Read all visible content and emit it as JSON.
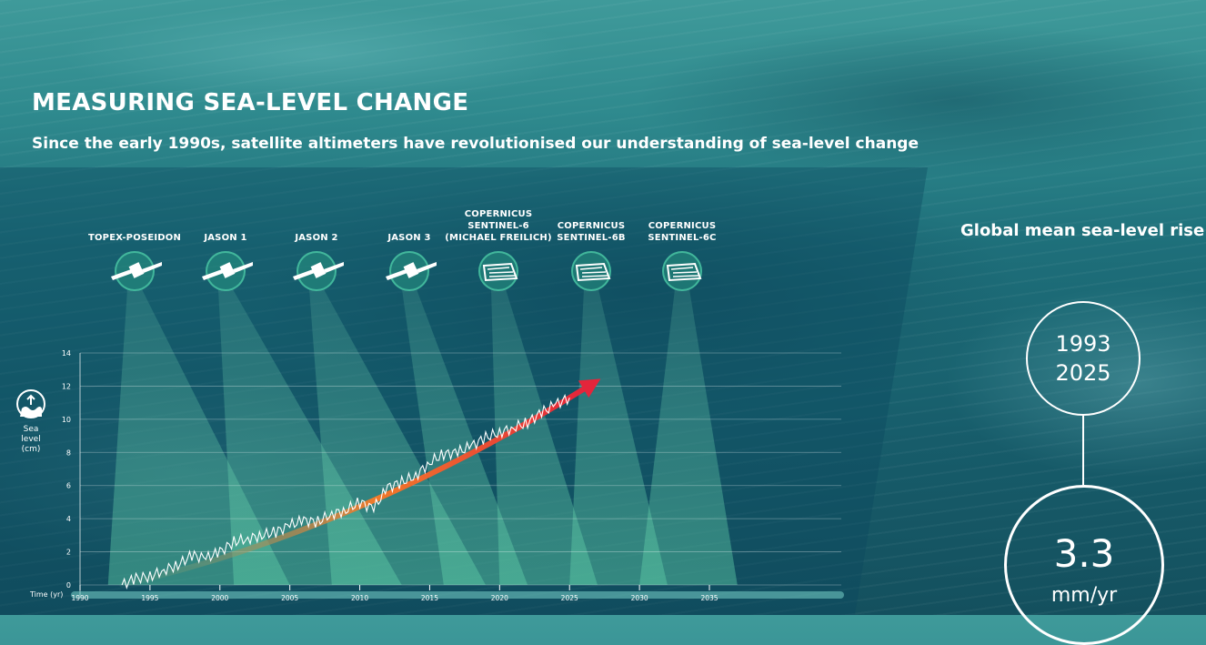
{
  "header": {
    "title": "MEASURING SEA-LEVEL CHANGE",
    "subtitle": "Since the early 1990s, satellite altimeters have revolutionised our understanding of sea-level change"
  },
  "satellites": [
    {
      "label": "TOPEX-POSEIDON",
      "icon": "satellite-icon"
    },
    {
      "label": "JASON 1",
      "icon": "satellite-icon"
    },
    {
      "label": "JASON 2",
      "icon": "satellite-icon"
    },
    {
      "label": "JASON 3",
      "icon": "satellite-icon"
    },
    {
      "label": "COPERNICUS\nSENTINEL-6\n(MICHAEL FREILICH)",
      "icon": "sentinel-satellite-icon"
    },
    {
      "label": "COPERNICUS\nSENTINEL-6B",
      "icon": "sentinel-satellite-icon"
    },
    {
      "label": "COPERNICUS\nSENTINEL-6C",
      "icon": "sentinel-satellite-icon"
    }
  ],
  "chart_data": {
    "type": "line",
    "ylabel": "Sea level\n(cm)",
    "xlabel": "Time (yr)",
    "xlim": [
      1990,
      2035
    ],
    "ylim": [
      0,
      14
    ],
    "y_ticks": [
      0,
      2,
      4,
      6,
      8,
      10,
      12,
      14
    ],
    "x_ticks": [
      1990,
      1995,
      2000,
      2005,
      2010,
      2015,
      2020,
      2025,
      2030,
      2035
    ],
    "grid": true,
    "series": [
      {
        "name": "",
        "x": [
          1993,
          1994,
          1995,
          1996,
          1997,
          1998,
          1999,
          2000,
          2001,
          2002,
          2003,
          2004,
          2005,
          2006,
          2007,
          2008,
          2009,
          2010,
          2011,
          2012,
          2013,
          2014,
          2015,
          2016,
          2017,
          2018,
          2019,
          2020,
          2021,
          2022,
          2023,
          2024,
          2025
        ],
        "y": [
          0.0,
          0.4,
          0.5,
          0.9,
          1.2,
          1.8,
          1.6,
          2.0,
          2.6,
          2.8,
          3.0,
          3.2,
          3.6,
          3.9,
          3.8,
          4.3,
          4.5,
          5.0,
          4.6,
          5.9,
          6.2,
          6.6,
          7.4,
          7.9,
          8.0,
          8.4,
          8.9,
          9.2,
          9.5,
          9.8,
          10.4,
          10.9,
          11.3
        ],
        "color": "#ffffff"
      }
    ],
    "trend_color_start": "#5fa58a",
    "trend_color_end": "#e4253b",
    "satellite_spans": [
      {
        "name": "TOPEX-POSEIDON",
        "start": 1992,
        "end": 2005
      },
      {
        "name": "JASON 1",
        "start": 2001,
        "end": 2013
      },
      {
        "name": "JASON 2",
        "start": 2008,
        "end": 2019
      },
      {
        "name": "JASON 3",
        "start": 2016,
        "end": 2022
      },
      {
        "name": "COPERNICUS SENTINEL-6 (MICHAEL FREILICH)",
        "start": 2020,
        "end": 2027
      },
      {
        "name": "COPERNICUS SENTINEL-6B",
        "start": 2025,
        "end": 2032
      },
      {
        "name": "COPERNICUS SENTINEL-6C",
        "start": 2030,
        "end": 2037
      }
    ]
  },
  "sidebar": {
    "title": "Global mean sea-level rise",
    "year_start": "1993",
    "year_end": "2025",
    "rate_value": "3.3",
    "rate_unit": "mm/yr"
  }
}
